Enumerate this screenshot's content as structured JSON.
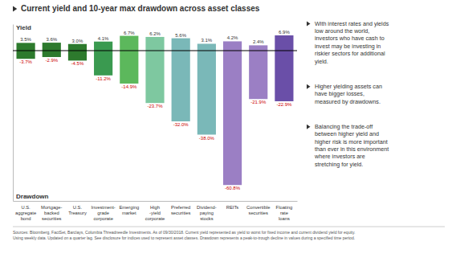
{
  "chart_data": {
    "type": "bar",
    "title": "Current yield and 10-year max drawdown across asset classes",
    "categories": [
      "U.S.\naggregate\nbond",
      "Mortgage-\nbacked\nsecurities",
      "U.S.\nTreasury",
      "Investment-\ngrade\ncorporate",
      "Emerging\nmarket",
      "High\n-yield\ncorporate",
      "Preferred\nsecurities",
      "Dividend-\npaying\nstocks",
      "REITs",
      "Convertible\nsecurities",
      "Floating\nrate\nloans"
    ],
    "series": [
      {
        "name": "Yield",
        "values": [
          3.5,
          3.6,
          3.0,
          4.1,
          6.7,
          6.2,
          5.6,
          3.1,
          4.2,
          2.4,
          6.9
        ],
        "value_labels": [
          "3.5%",
          "3.6%",
          "3.0%",
          "4.1%",
          "6.7%",
          "6.2%",
          "5.6%",
          "3.1%",
          "4.2%",
          "2.4%",
          "6.9%"
        ]
      },
      {
        "name": "Drawdown",
        "color": "#cc0000",
        "values": [
          -3.7,
          -2.9,
          -4.5,
          -11.2,
          -14.9,
          -23.7,
          -32.0,
          -38.0,
          -60.8,
          -21.9,
          -22.9
        ],
        "value_labels": [
          "-3.7%",
          "-2.9%",
          "-4.5%",
          "-11.2%",
          "-14.9%",
          "-23.7%",
          "-32.0%",
          "-38.0%",
          "-60.8%",
          "-21.9%",
          "-22.9%"
        ]
      }
    ],
    "colors": [
      "#2d7a2d",
      "#2d7a2d",
      "#2d7a2d",
      "#3a9a50",
      "#5cb85c",
      "#7ec8a0",
      "#7ab8b8",
      "#7ab8b8",
      "#9b7fc4",
      "#9b7fc4",
      "#6a4fa8"
    ],
    "ylim": [
      -68,
      12
    ],
    "data_labels": true,
    "tick_labels": false,
    "annotations": [
      "With interest rates and yields\nlow around the world,\ninvestors who have cash to\ninvest may be investing in\nriskier sectors for additional\nyield.",
      "Higher yielding assets can\nhave bigger losses,\nmeasured by drawdowns.",
      "Balancing the trade-off\nbetween higher yield and\nhigher risk is more important\nthan ever in this environment\nwhere investors are\nstretching for yield.",
      "Sources: Bloomberg, FactSet, Barclays, Columbia Threadneedle Investments. As of 09/30/2018. Current yield represented as yield to worst for fixed income and current dividend yield for equity.\nUsing weekly data. Updated on a quarter lag. See disclosure for indices used to represent asset classes. Drawdown represents a peak-to-trough decline in values during a specified time period."
    ]
  }
}
